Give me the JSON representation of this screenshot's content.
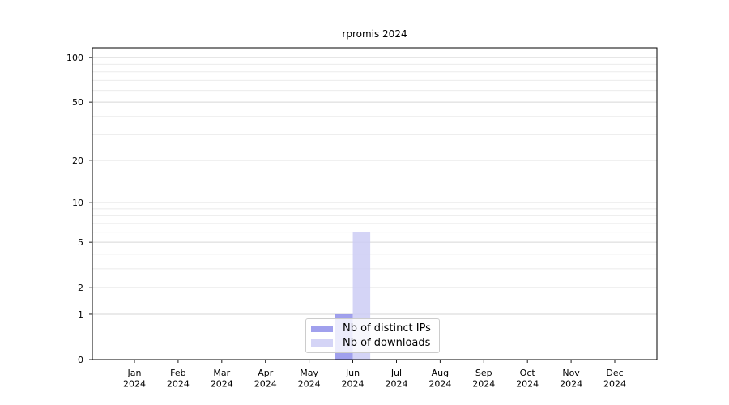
{
  "title": "rpromis 2024",
  "legend": {
    "items": [
      {
        "label": "Nb of distinct IPs"
      },
      {
        "label": "Nb of downloads"
      }
    ],
    "position": "lower center"
  },
  "chart_data": {
    "type": "bar",
    "title": "rpromis 2024",
    "categories": [
      "Jan 2024",
      "Feb 2024",
      "Mar 2024",
      "Apr 2024",
      "May 2024",
      "Jun 2024",
      "Jul 2024",
      "Aug 2024",
      "Sep 2024",
      "Oct 2024",
      "Nov 2024",
      "Dec 2024"
    ],
    "series": [
      {
        "name": "Nb of distinct IPs",
        "color": "#8f8fea",
        "values": [
          0,
          0,
          0,
          0,
          0,
          1,
          0,
          0,
          0,
          0,
          0,
          0
        ]
      },
      {
        "name": "Nb of downloads",
        "color": "#ccccf5",
        "values": [
          0,
          0,
          0,
          0,
          0,
          6,
          0,
          0,
          0,
          0,
          0,
          0
        ]
      }
    ],
    "xlabel": "",
    "ylabel": "",
    "yscale": "log1p",
    "ylim": [
      0,
      116
    ],
    "y_major_ticks": [
      0,
      1,
      2,
      5,
      10,
      20,
      50,
      100
    ],
    "y_minor_ticks": [
      3,
      4,
      6,
      7,
      8,
      9,
      30,
      40,
      60,
      70,
      80,
      90
    ],
    "grid": true,
    "legend_position": "lower center"
  },
  "colors": {
    "grid_major": "#d6d6d6",
    "grid_minor": "#ebebeb",
    "axis": "#000000",
    "text": "#000000",
    "background": "#ffffff"
  }
}
